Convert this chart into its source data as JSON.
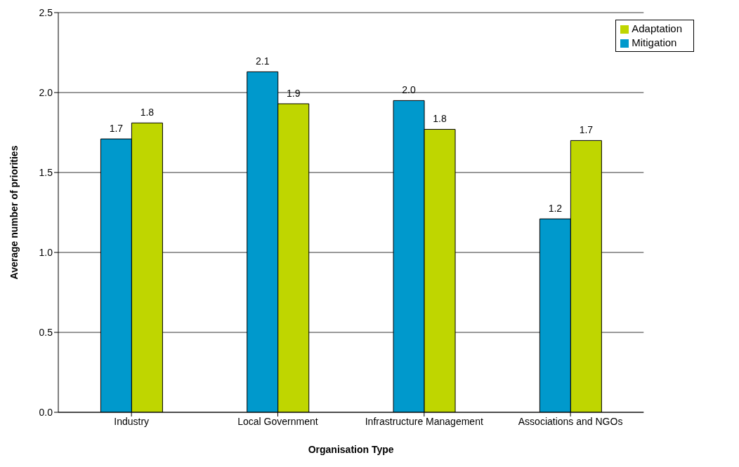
{
  "chart_data": {
    "type": "bar",
    "xlabel": "Organisation Type",
    "ylabel": "Average number of priorities",
    "categories": [
      "Industry",
      "Local Government",
      "Infrastructure Management",
      "Associations and NGOs"
    ],
    "series": [
      {
        "name": "Mitigation",
        "color": "#0099cc",
        "values": [
          1.71,
          2.13,
          1.95,
          1.21
        ],
        "value_labels": [
          "1.7",
          "2.1",
          "2.0",
          "1.2"
        ]
      },
      {
        "name": "Adaptation",
        "color": "#bfd600",
        "values": [
          1.81,
          1.93,
          1.77,
          1.7
        ],
        "value_labels": [
          "1.8",
          "1.9",
          "1.8",
          "1.7"
        ]
      }
    ],
    "ylim": [
      0,
      2.5
    ],
    "yticks": [
      {
        "value": 0,
        "label": "0.0"
      },
      {
        "value": 0.5,
        "label": "0.5"
      },
      {
        "value": 1,
        "label": "1.0"
      },
      {
        "value": 1.5,
        "label": "1.5"
      },
      {
        "value": 2,
        "label": "2.0"
      },
      {
        "value": 2.5,
        "label": "2.5"
      }
    ],
    "grid": "y",
    "legend": "top right"
  }
}
